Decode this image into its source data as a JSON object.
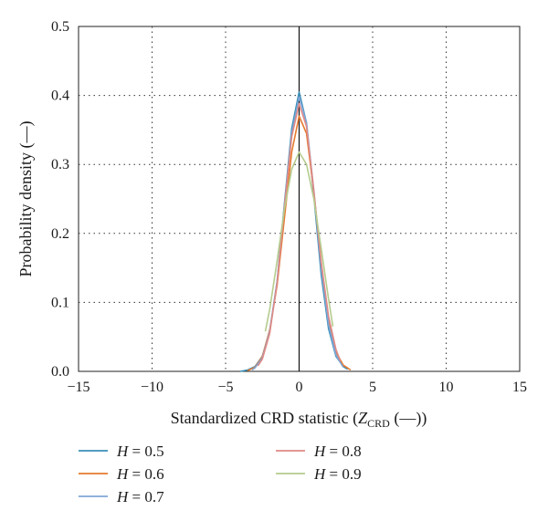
{
  "chart_data": {
    "type": "line",
    "xlabel_prefix": "Standardized CRD statistic (",
    "xlabel_var": "Z",
    "xlabel_sub": "CRD",
    "xlabel_suffix": " (—))",
    "ylabel": "Probability density (—)",
    "xlim": [
      -15,
      15
    ],
    "ylim": [
      0,
      0.5
    ],
    "xticks": [
      -15,
      -10,
      -5,
      0,
      5,
      10,
      15
    ],
    "yticks": [
      0.0,
      0.1,
      0.2,
      0.3,
      0.4,
      0.5
    ],
    "xtick_labels": [
      "−15",
      "−10",
      "−5",
      "0",
      "5",
      "10",
      "15"
    ],
    "ytick_labels": [
      "0.0",
      "0.1",
      "0.2",
      "0.3",
      "0.4",
      "0.5"
    ],
    "grid": true,
    "grid_style": "dotted",
    "legend_position": "bottom",
    "series": [
      {
        "name": "H = 0.5",
        "var": "H",
        "eq": " = 0.5",
        "color": "#3a8fb7",
        "x": [
          -4.0,
          -3.5,
          -3.0,
          -2.5,
          -2.0,
          -1.5,
          -1.0,
          -0.5,
          0.0,
          0.5,
          1.0,
          1.5,
          2.0,
          2.5,
          3.0,
          3.3
        ],
        "y": [
          0.0,
          0.002,
          0.007,
          0.022,
          0.058,
          0.13,
          0.243,
          0.352,
          0.405,
          0.36,
          0.255,
          0.14,
          0.062,
          0.022,
          0.007,
          0.003
        ]
      },
      {
        "name": "H = 0.6",
        "var": "H",
        "eq": " = 0.6",
        "color": "#e57a2e",
        "x": [
          -3.5,
          -3.0,
          -2.5,
          -2.0,
          -1.5,
          -1.0,
          -0.5,
          0.0,
          0.5,
          1.0,
          1.5,
          2.0,
          2.5,
          3.0,
          3.5
        ],
        "y": [
          0.001,
          0.006,
          0.022,
          0.06,
          0.125,
          0.222,
          0.318,
          0.37,
          0.345,
          0.26,
          0.158,
          0.075,
          0.028,
          0.009,
          0.002
        ]
      },
      {
        "name": "H = 0.7",
        "var": "H",
        "eq": " = 0.7",
        "color": "#7fa6d6",
        "x": [
          -3.2,
          -3.0,
          -2.5,
          -2.0,
          -1.5,
          -1.0,
          -0.5,
          0.0,
          0.5,
          1.0,
          1.5,
          2.0,
          2.5,
          3.0
        ],
        "y": [
          0.002,
          0.005,
          0.02,
          0.058,
          0.13,
          0.24,
          0.345,
          0.398,
          0.36,
          0.262,
          0.15,
          0.068,
          0.024,
          0.006
        ]
      },
      {
        "name": "H = 0.8",
        "var": "H",
        "eq": " = 0.8",
        "color": "#e08a86",
        "x": [
          -2.8,
          -2.5,
          -2.0,
          -1.5,
          -1.0,
          -0.5,
          0.0,
          0.5,
          1.0,
          1.5,
          2.0,
          2.5,
          2.8
        ],
        "y": [
          0.008,
          0.018,
          0.055,
          0.128,
          0.238,
          0.34,
          0.388,
          0.355,
          0.262,
          0.158,
          0.08,
          0.032,
          0.015
        ]
      },
      {
        "name": "H = 0.9",
        "var": "H",
        "eq": " = 0.9",
        "color": "#b5cc8e",
        "x": [
          -2.3,
          -2.0,
          -1.5,
          -1.0,
          -0.5,
          0.0,
          0.5,
          1.0,
          1.5,
          2.0,
          2.3
        ],
        "y": [
          0.058,
          0.09,
          0.16,
          0.235,
          0.293,
          0.318,
          0.3,
          0.25,
          0.178,
          0.105,
          0.065
        ]
      }
    ]
  }
}
